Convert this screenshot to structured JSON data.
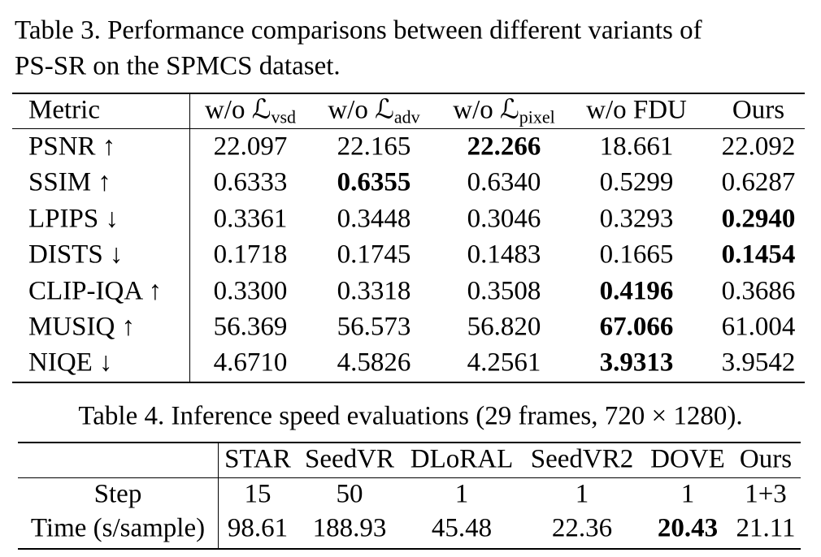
{
  "table3": {
    "caption": "Table 3.  Performance comparisons between different variants of",
    "caption_line2": "PS-SR on the SPMCS dataset.",
    "header": [
      {
        "text": "Metric"
      },
      {
        "text": "w/o ℒ",
        "sub": "vsd"
      },
      {
        "text": "w/o ℒ",
        "sub": "adv"
      },
      {
        "text": "w/o ℒ",
        "sub": "pixel"
      },
      {
        "text": "w/o FDU"
      },
      {
        "text": "Ours"
      }
    ],
    "rows": [
      {
        "metric": "PSNR ↑",
        "values": [
          "22.097",
          "22.165",
          "22.266",
          "18.661",
          "22.092"
        ],
        "bold": 2
      },
      {
        "metric": "SSIM ↑",
        "values": [
          "0.6333",
          "0.6355",
          "0.6340",
          "0.5299",
          "0.6287"
        ],
        "bold": 1
      },
      {
        "metric": "LPIPS ↓",
        "values": [
          "0.3361",
          "0.3448",
          "0.3046",
          "0.3293",
          "0.2940"
        ],
        "bold": 4
      },
      {
        "metric": "DISTS ↓",
        "values": [
          "0.1718",
          "0.1745",
          "0.1483",
          "0.1665",
          "0.1454"
        ],
        "bold": 4
      },
      {
        "metric": "CLIP-IQA ↑",
        "values": [
          "0.3300",
          "0.3318",
          "0.3508",
          "0.4196",
          "0.3686"
        ],
        "bold": 3
      },
      {
        "metric": "MUSIQ ↑",
        "values": [
          "56.369",
          "56.573",
          "56.820",
          "67.066",
          "61.004"
        ],
        "bold": 3
      },
      {
        "metric": "NIQE ↓",
        "values": [
          "4.6710",
          "4.5826",
          "4.2561",
          "3.9313",
          "3.9542"
        ],
        "bold": 3
      }
    ]
  },
  "table4": {
    "caption": "Table 4. Inference speed evaluations (29 frames, 720 × 1280).",
    "header": [
      "STAR",
      "SeedVR",
      "DLoRAL",
      "SeedVR2",
      "DOVE",
      "Ours"
    ],
    "rows": [
      {
        "metric": "Step",
        "values": [
          "15",
          "50",
          "1",
          "1",
          "1",
          "1+3"
        ]
      },
      {
        "metric": "Time (s/sample)",
        "values": [
          "98.61",
          "188.93",
          "45.48",
          "22.36",
          "20.43",
          "21.11"
        ],
        "bold": 4
      }
    ]
  }
}
